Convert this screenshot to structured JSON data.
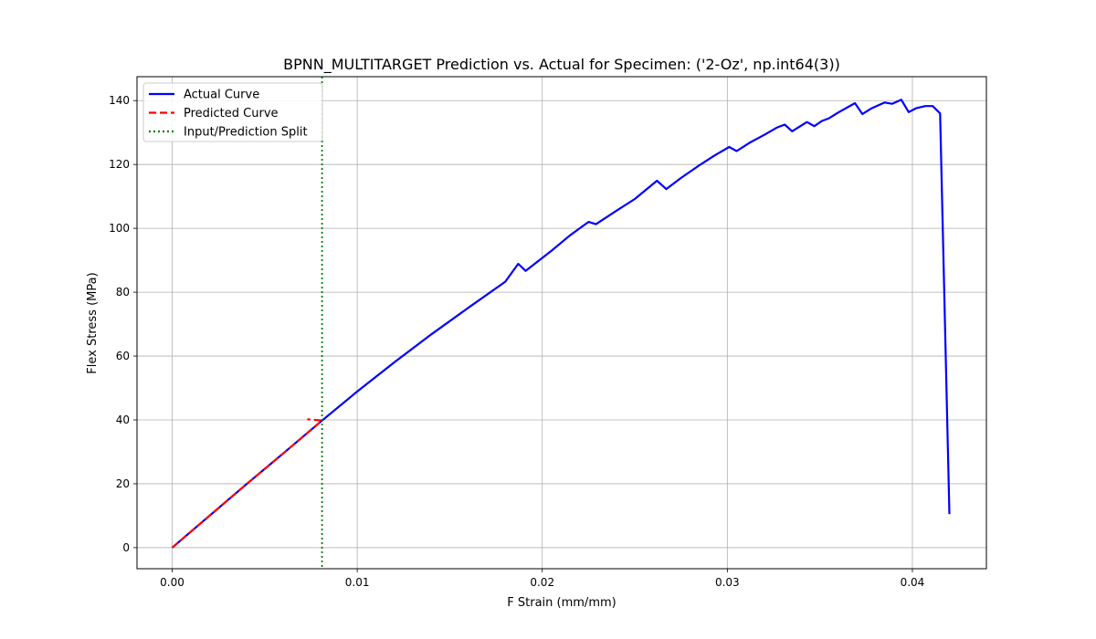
{
  "chart_data": {
    "type": "line",
    "title": "BPNN_MULTITARGET Prediction vs. Actual for Specimen: ('2-Oz', np.int64(3))",
    "xlabel": "F Strain (mm/mm)",
    "ylabel": "Flex Stress (MPa)",
    "xlim": [
      -0.0019,
      0.044
    ],
    "ylim": [
      -6.6,
      147.5
    ],
    "grid": true,
    "legend_position": "top-left",
    "x_ticks": [
      {
        "value": 0.0,
        "label": "0.00"
      },
      {
        "value": 0.01,
        "label": "0.01"
      },
      {
        "value": 0.02,
        "label": "0.02"
      },
      {
        "value": 0.03,
        "label": "0.03"
      },
      {
        "value": 0.04,
        "label": "0.04"
      }
    ],
    "y_ticks": [
      {
        "value": 0,
        "label": "0"
      },
      {
        "value": 20,
        "label": "20"
      },
      {
        "value": 40,
        "label": "40"
      },
      {
        "value": 60,
        "label": "60"
      },
      {
        "value": 80,
        "label": "80"
      },
      {
        "value": 100,
        "label": "100"
      },
      {
        "value": 120,
        "label": "120"
      },
      {
        "value": 140,
        "label": "140"
      }
    ],
    "series": [
      {
        "name": "Actual Curve",
        "color": "#0000ff",
        "style": "solid",
        "x": [
          0.0,
          0.002,
          0.004,
          0.006,
          0.0081,
          0.01,
          0.012,
          0.014,
          0.016,
          0.018,
          0.0187,
          0.0191,
          0.0205,
          0.0215,
          0.0225,
          0.0229,
          0.024,
          0.025,
          0.0262,
          0.0267,
          0.0275,
          0.0285,
          0.0293,
          0.0301,
          0.0305,
          0.0312,
          0.032,
          0.0327,
          0.0331,
          0.0335,
          0.0343,
          0.0347,
          0.0351,
          0.0355,
          0.036,
          0.0369,
          0.0373,
          0.0378,
          0.0385,
          0.0389,
          0.0394,
          0.0398,
          0.0402,
          0.0407,
          0.0411,
          0.0415,
          0.042
        ],
        "y": [
          0.0,
          9.9,
          19.8,
          29.5,
          39.8,
          48.9,
          58.0,
          66.8,
          75.1,
          83.3,
          88.9,
          86.7,
          93.0,
          97.8,
          102.0,
          101.3,
          105.5,
          109.2,
          114.9,
          112.3,
          115.8,
          119.8,
          122.8,
          125.5,
          124.2,
          126.8,
          129.3,
          131.6,
          132.5,
          130.4,
          133.3,
          132.0,
          133.6,
          134.5,
          136.3,
          139.2,
          135.8,
          137.6,
          139.4,
          139.0,
          140.3,
          136.4,
          137.6,
          138.3,
          138.3,
          136.0,
          10.5
        ]
      },
      {
        "name": "Predicted Curve",
        "color": "#ff0000",
        "style": "dashed",
        "x": [
          0.0,
          0.002,
          0.004,
          0.006,
          0.0081,
          0.0073
        ],
        "y": [
          0.0,
          9.9,
          19.8,
          29.5,
          39.8,
          40.2
        ]
      }
    ],
    "vlines": [
      {
        "name": "Input/Prediction Split",
        "x": 0.0081,
        "color": "#008000",
        "style": "dotted"
      }
    ]
  }
}
